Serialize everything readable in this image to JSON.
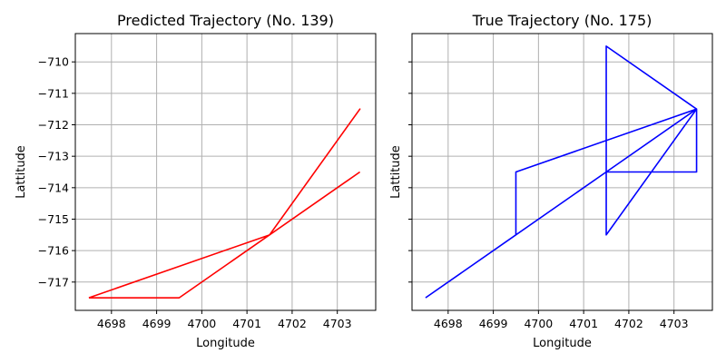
{
  "chart_data": [
    {
      "type": "line",
      "title": "Predicted Trajectory (No. 139)",
      "xlabel": "Longitude",
      "ylabel": "Lattitude",
      "xlim": [
        4697.2,
        4703.85
      ],
      "ylim": [
        -717.9,
        -709.1
      ],
      "xticks": [
        4698,
        4699,
        4700,
        4701,
        4702,
        4703
      ],
      "yticks": [
        -717,
        -716,
        -715,
        -714,
        -713,
        -712,
        -711,
        -710
      ],
      "grid": true,
      "color": "#ff0000",
      "series": [
        {
          "x": [
            4697.5,
            4699.5,
            4701.5,
            4703.5,
            4701.5,
            4697.5,
            4697.5
          ],
          "y": [
            -717.5,
            -717.5,
            -715.5,
            -711.5,
            -715.5,
            -717.5,
            -717.5
          ]
        },
        {
          "x": [
            4701.5,
            4703.5
          ],
          "y": [
            -715.5,
            -713.5
          ]
        }
      ]
    },
    {
      "type": "line",
      "title": "True Trajectory (No. 175)",
      "xlabel": "Longitude",
      "ylabel": "Lattitude",
      "xlim": [
        4697.2,
        4703.85
      ],
      "ylim": [
        -717.9,
        -709.1
      ],
      "xticks": [
        4698,
        4699,
        4700,
        4701,
        4702,
        4703
      ],
      "yticks": [
        -717,
        -716,
        -715,
        -714,
        -713,
        -712,
        -711,
        -710
      ],
      "grid": true,
      "color": "#0000ff",
      "series": [
        {
          "x": [
            4697.5,
            4699.5,
            4699.5,
            4703.5,
            4701.5,
            4701.5,
            4703.5,
            4703.5,
            4701.5,
            4697.5
          ],
          "y": [
            -717.5,
            -715.5,
            -713.5,
            -711.5,
            -709.5,
            -715.5,
            -711.5,
            -713.5,
            -713.5,
            -717.5
          ]
        },
        {
          "x": [
            4701.5,
            4703.5
          ],
          "y": [
            -713.5,
            -711.5
          ]
        }
      ]
    }
  ]
}
